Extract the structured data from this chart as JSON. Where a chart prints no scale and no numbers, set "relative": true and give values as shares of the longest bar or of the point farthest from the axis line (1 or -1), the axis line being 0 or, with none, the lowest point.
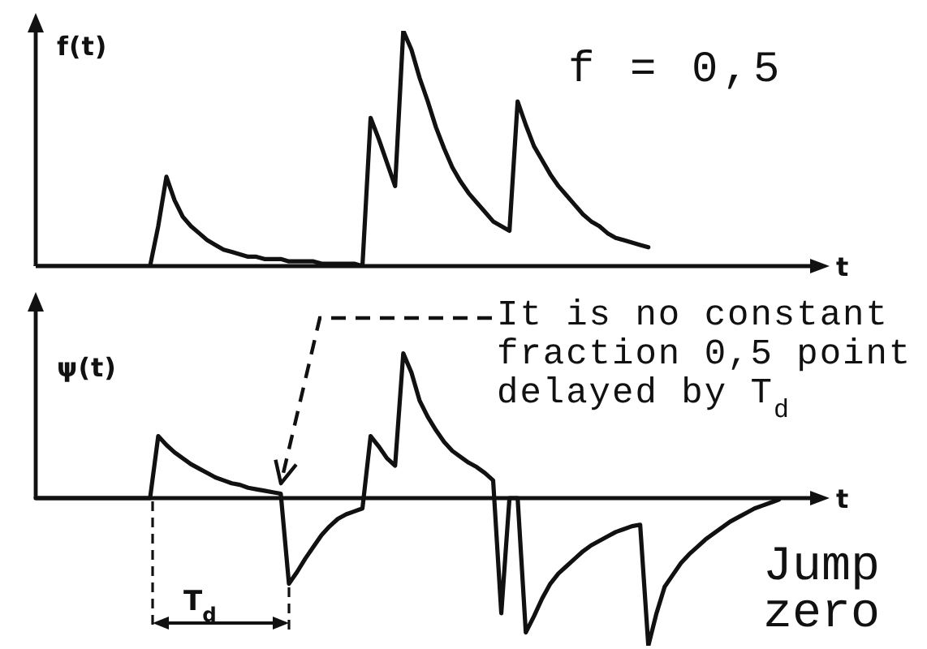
{
  "chart_data": [
    {
      "type": "line",
      "relative": true,
      "ylabel": "f(t)",
      "xlabel": "t",
      "categories": [
        null,
        null,
        null,
        null,
        null,
        null,
        null,
        null,
        null,
        null,
        null,
        null,
        null,
        null,
        null,
        null,
        null,
        null,
        null,
        null,
        null,
        null,
        null,
        null,
        null,
        null,
        null,
        null,
        null,
        null,
        null,
        null,
        null,
        null,
        null,
        null,
        null,
        null,
        null,
        null,
        null,
        null,
        null,
        null,
        null,
        null,
        null,
        null,
        null,
        null,
        null,
        null,
        null,
        null,
        null,
        null,
        null,
        null,
        null,
        null,
        null,
        null,
        null,
        null,
        null,
        null,
        null,
        null,
        null,
        null,
        null,
        null,
        null,
        null,
        null,
        null,
        null,
        null,
        null,
        null,
        null,
        null,
        null,
        null,
        null,
        null,
        null,
        null,
        null,
        null,
        null,
        null,
        null,
        null,
        null,
        null,
        null
      ],
      "series": [
        {
          "color": "#111111",
          "values": [
            0,
            0,
            0,
            0,
            0,
            0,
            0,
            0,
            0,
            0,
            0,
            0,
            0,
            0,
            0,
            0.17,
            0.38,
            0.28,
            0.21,
            0.17,
            0.14,
            0.11,
            0.09,
            0.07,
            0.06,
            0.05,
            0.04,
            0.04,
            0.03,
            0.03,
            0.03,
            0.02,
            0.02,
            0.02,
            0.02,
            0.01,
            0.01,
            0.01,
            0.01,
            0.01,
            0,
            0.63,
            0.54,
            0.44,
            0.34,
            1,
            0.92,
            0.8,
            0.7,
            0.59,
            0.5,
            0.42,
            0.36,
            0.31,
            0.27,
            0.23,
            0.19,
            0.17,
            0.15,
            0.7,
            0.6,
            0.51,
            0.45,
            0.39,
            0.34,
            0.3,
            0.26,
            0.22,
            0.19,
            0.17,
            0.14,
            0.12,
            0.11,
            0.1,
            0.09,
            0.08,
            null,
            null,
            null,
            null,
            null,
            null,
            null,
            null,
            null,
            null,
            null,
            null,
            null,
            null,
            null,
            null,
            null,
            null,
            null,
            null,
            null
          ]
        }
      ],
      "annotations": [
        "f = 0,5"
      ]
    },
    {
      "type": "line",
      "relative": true,
      "ylabel": "ψ(t)",
      "xlabel": "t",
      "categories": [
        null,
        null,
        null,
        null,
        null,
        null,
        null,
        null,
        null,
        null,
        null,
        null,
        null,
        null,
        null,
        null,
        null,
        null,
        null,
        null,
        null,
        null,
        null,
        null,
        null,
        null,
        null,
        null,
        null,
        null,
        null,
        null,
        null,
        null,
        null,
        null,
        null,
        null,
        null,
        null,
        null,
        null,
        null,
        null,
        null,
        null,
        null,
        null,
        null,
        null,
        null,
        null,
        null,
        null,
        null,
        null,
        null,
        null,
        null,
        null,
        null,
        null,
        null,
        null,
        null,
        null,
        null,
        null,
        null,
        null,
        null,
        null,
        null,
        null,
        null,
        null,
        null,
        null,
        null,
        null,
        null,
        null,
        null,
        null,
        null,
        null,
        null,
        null,
        null,
        null,
        null,
        null,
        null,
        null,
        null,
        null,
        null
      ],
      "series": [
        {
          "color": "#111111",
          "values": [
            0,
            0,
            0,
            0,
            0,
            0,
            0,
            0,
            0,
            0,
            0,
            0,
            0,
            0,
            0,
            0.42,
            0.36,
            0.31,
            0.27,
            0.23,
            0.2,
            0.17,
            0.14,
            0.12,
            0.1,
            0.09,
            0.07,
            0.06,
            0.05,
            0.04,
            0.03,
            -0.58,
            -0.5,
            -0.41,
            -0.33,
            -0.25,
            -0.19,
            -0.14,
            -0.11,
            -0.09,
            -0.07,
            0.42,
            0.35,
            0.27,
            0.22,
            0.98,
            0.85,
            0.66,
            0.55,
            0.46,
            0.38,
            0.32,
            0.28,
            0.24,
            0.21,
            0.17,
            0.12,
            -0.78,
            0,
            0,
            -0.91,
            -0.8,
            -0.68,
            -0.58,
            -0.51,
            -0.46,
            -0.41,
            -0.36,
            -0.32,
            -0.29,
            -0.26,
            -0.23,
            -0.21,
            -0.19,
            -0.18,
            -1,
            -0.78,
            -0.6,
            -0.52,
            -0.44,
            -0.38,
            -0.33,
            -0.28,
            -0.24,
            -0.2,
            -0.16,
            -0.13,
            -0.1,
            -0.07,
            -0.05,
            -0.03,
            -0.01,
            null,
            null,
            null,
            null,
            null
          ]
        }
      ],
      "annotations": [
        "It is no constant fraction 0,5 point delayed by T$_{d}$",
        "T$_{d}$",
        "Jump",
        "zero"
      ]
    }
  ]
}
